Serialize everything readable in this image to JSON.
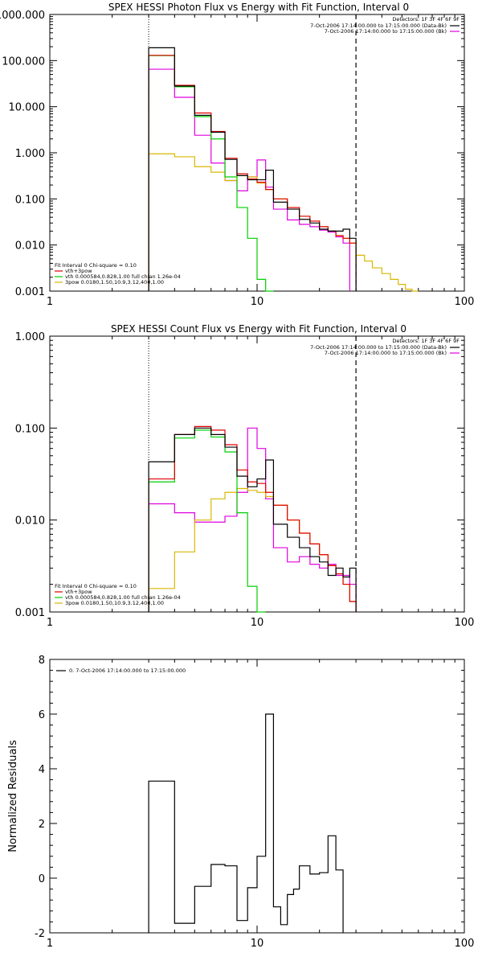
{
  "colors": {
    "total": "#000000",
    "vth_3pow": "#e00000",
    "vth": "#00d000",
    "3pow": "#d8b800",
    "background": "#e000e0"
  },
  "chart_data": [
    {
      "type": "line",
      "name": "photon-flux",
      "title": "SPEX HESSI Photon Flux vs Energy with Fit Function, Interval 0",
      "xlabel": "",
      "ylabel": "",
      "xscale": "log",
      "yscale": "log",
      "xlim": [
        1,
        100
      ],
      "ylim": [
        0.001,
        1000
      ],
      "x_ticks": [
        "1",
        "10",
        "100"
      ],
      "y_ticks": [
        "0.001",
        "0.010",
        "0.100",
        "1.000",
        "10.000",
        "100.000",
        "1000.000"
      ],
      "markers": {
        "dotted_x": 3,
        "dashed_x": 30
      },
      "header_lines": [
        "Detectors: 1F 3F 4F 6F 9F",
        "7-Oct-2006 17:14:00.000 to 17:15:00.000 (Data-Bk)",
        "7-Oct-2006 17:14:00.000 to 17:15:00.000 (Bk)"
      ],
      "fit_lines": [
        "Fit Interval 0   Chi-square = 0.10",
        "vth+3pow",
        "vth 0.000584,0.828,1.00  full chian 1.26e-04",
        "3pow 0.0180,1.50,10.9,3.12,400,1.00"
      ],
      "edges": [
        3,
        4,
        5,
        6,
        7,
        8,
        9,
        10,
        11,
        12,
        14,
        16,
        18,
        20,
        22,
        24,
        26,
        28,
        30,
        33,
        36,
        40,
        44,
        48,
        52,
        56,
        60
      ],
      "series": [
        {
          "name": "Data-Bk",
          "color": "total",
          "values": [
            190,
            28,
            6.5,
            2.8,
            0.72,
            0.32,
            0.26,
            0.26,
            0.42,
            0.085,
            0.06,
            0.036,
            0.03,
            0.022,
            0.02,
            0.02,
            0.022,
            0.014
          ]
        },
        {
          "name": "vth+3pow",
          "color": "vth_3pow",
          "values": [
            130,
            29,
            7.3,
            2.9,
            0.76,
            0.35,
            0.27,
            0.23,
            0.16,
            0.1,
            0.065,
            0.042,
            0.033,
            0.025,
            0.02,
            0.016,
            0.014,
            0.011
          ]
        },
        {
          "name": "vth",
          "color": "vth",
          "values": [
            128,
            27,
            6.1,
            2.0,
            0.3,
            0.065,
            0.014,
            0.0018,
            0.00095
          ]
        },
        {
          "name": "3pow",
          "color": "3pow",
          "values": [
            0.95,
            0.82,
            0.5,
            0.38,
            0.25,
            0.32,
            0.3,
            0.22,
            0.16,
            0.1,
            0.065,
            0.042,
            0.033,
            0.025,
            0.02,
            0.016,
            0.014,
            0.011,
            0.006,
            0.0045,
            0.0032,
            0.0024,
            0.0018,
            0.0014,
            0.0011,
            0.00095
          ]
        },
        {
          "name": "Bk",
          "color": "background",
          "values": [
            65,
            16,
            2.4,
            0.6,
            0.25,
            0.15,
            0.3,
            0.7,
            0.18,
            0.06,
            0.035,
            0.028,
            0.025,
            0.021,
            0.019,
            0.015,
            0.011
          ]
        }
      ]
    },
    {
      "type": "line",
      "name": "count-flux",
      "title": "SPEX HESSI Count Flux vs Energy with Fit Function, Interval 0",
      "xlabel": "",
      "ylabel": "",
      "xscale": "log",
      "yscale": "log",
      "xlim": [
        1,
        100
      ],
      "ylim": [
        0.001,
        1
      ],
      "x_ticks": [
        "1",
        "10",
        "100"
      ],
      "y_ticks": [
        "0.001",
        "0.010",
        "0.100",
        "1.000"
      ],
      "markers": {
        "dotted_x": 3,
        "dashed_x": 30
      },
      "header_lines": [
        "Detectors: 1F 3F 4F 6F 9F",
        "7-Oct-2006 17:14:00.000 to 17:15:00.000 (Data-Bk)",
        "7-Oct-2006 17:14:00.000 to 17:15:00.000 (Bk)"
      ],
      "fit_lines": [
        "Fit Interval 0   Chi-square = 0.10",
        "vth+3pow",
        "vth 0.000584,0.828,1.00  full chian 1.26e-04",
        "3pow 0.0180,1.50,10.9,3.12,400,1.00"
      ],
      "edges": [
        3,
        4,
        5,
        6,
        7,
        8,
        9,
        10,
        11,
        12,
        14,
        16,
        18,
        20,
        22,
        24,
        26,
        28,
        30
      ],
      "series": [
        {
          "name": "Data-Bk",
          "color": "total",
          "values": [
            0.043,
            0.085,
            0.1,
            0.085,
            0.062,
            0.03,
            0.023,
            0.028,
            0.045,
            0.009,
            0.0065,
            0.005,
            0.004,
            0.0035,
            0.0025,
            0.003,
            0.0024,
            0.003
          ]
        },
        {
          "name": "vth+3pow",
          "color": "vth_3pow",
          "values": [
            0.028,
            0.085,
            0.104,
            0.095,
            0.066,
            0.035,
            0.026,
            0.025,
            0.02,
            0.0145,
            0.01,
            0.0072,
            0.0055,
            0.0042,
            0.0032,
            0.0026,
            0.002,
            0.0013
          ]
        },
        {
          "name": "vth",
          "color": "vth",
          "values": [
            0.026,
            0.078,
            0.095,
            0.08,
            0.055,
            0.012,
            0.0019,
            0.00095
          ]
        },
        {
          "name": "3pow",
          "color": "3pow",
          "values": [
            0.0018,
            0.0045,
            0.01,
            0.017,
            0.02,
            0.022,
            0.021,
            0.02,
            0.018,
            0.0145,
            0.01,
            0.0072,
            0.0055,
            0.0042,
            0.0032,
            0.0026,
            0.002,
            0.0013
          ]
        },
        {
          "name": "Bk",
          "color": "background",
          "values": [
            0.015,
            0.012,
            0.0095,
            0.0095,
            0.011,
            0.02,
            0.1,
            0.06,
            0.017,
            0.005,
            0.0035,
            0.004,
            0.0033,
            0.003,
            0.0033,
            0.0025,
            0.0025,
            0.002
          ]
        }
      ]
    },
    {
      "type": "line",
      "name": "residuals",
      "title": "",
      "xlabel": "",
      "ylabel": "Normalized Residuals",
      "xscale": "log",
      "yscale": "linear",
      "xlim": [
        1,
        100
      ],
      "ylim": [
        -2,
        8
      ],
      "x_ticks": [
        "1",
        "10",
        "100"
      ],
      "y_ticks": [
        "-2",
        "0",
        "2",
        "4",
        "6",
        "8"
      ],
      "legend_text": "0. 7-Oct-2006 17:14:00.000 to 17:15:00.000",
      "edges": [
        3,
        4,
        5,
        6,
        7,
        8,
        9,
        10,
        11,
        12,
        13,
        14,
        15,
        16,
        18,
        20,
        22,
        24,
        26,
        28,
        30
      ],
      "series": [
        {
          "name": "0.",
          "color": "total",
          "values": [
            3.55,
            -1.65,
            -0.3,
            0.5,
            0.45,
            -1.55,
            -0.35,
            0.8,
            6.0,
            -1.05,
            -1.7,
            -0.6,
            -0.4,
            0.45,
            0.15,
            0.2,
            1.55,
            0.3
          ]
        }
      ]
    }
  ]
}
